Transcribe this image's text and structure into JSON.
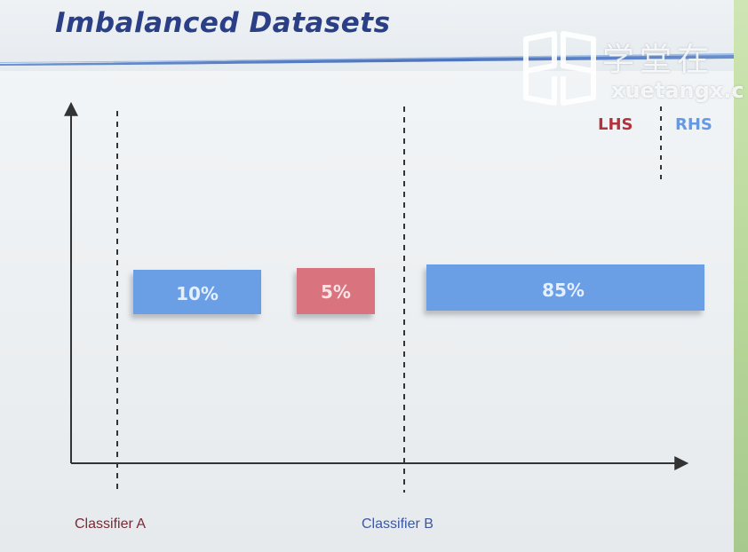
{
  "slide": {
    "title": "Imbalanced Datasets"
  },
  "watermark": {
    "chinese_text": "学堂在",
    "latin_text": "xuetangx.c"
  },
  "legend": {
    "lhs_label": "LHS",
    "rhs_label": "RHS",
    "lhs_color": "#b2333d",
    "rhs_color": "#6699e0"
  },
  "segments": [
    {
      "label": "10%",
      "color": "#6a9fe6",
      "side": "RHS"
    },
    {
      "label": "5%",
      "color": "#d9737e",
      "side": "LHS"
    },
    {
      "label": "85%",
      "color": "#6a9fe6",
      "side": "RHS"
    }
  ],
  "classifiers": {
    "a_label": "Classifier A",
    "b_label": "Classifier B"
  },
  "colors": {
    "title": "#2b3f86",
    "blue_bar": "#6a9fe6",
    "red_bar": "#d9737e",
    "axis": "#333333",
    "header_band": "#3a66b8"
  }
}
